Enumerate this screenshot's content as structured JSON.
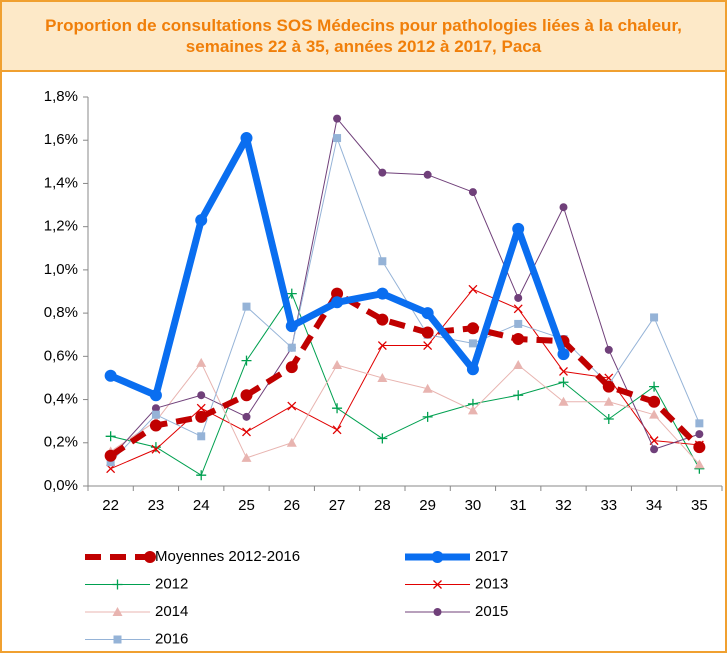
{
  "chart_data": {
    "type": "line",
    "title": "Proportion de consultations SOS Médecins pour pathologies liées à la chaleur, semaines 22 à 35, années 2012 à 2017, Paca",
    "categories": [
      "22",
      "23",
      "24",
      "25",
      "26",
      "27",
      "28",
      "29",
      "30",
      "31",
      "32",
      "33",
      "34",
      "35"
    ],
    "ylim": [
      0,
      1.8
    ],
    "yticks": [
      {
        "value": 0,
        "label": "0,0%"
      },
      {
        "value": 0.2,
        "label": "0,2%"
      },
      {
        "value": 0.4,
        "label": "0,4%"
      },
      {
        "value": 0.6,
        "label": "0,6%"
      },
      {
        "value": 0.8,
        "label": "0,8%"
      },
      {
        "value": 1.0,
        "label": "1,0%"
      },
      {
        "value": 1.2,
        "label": "1,2%"
      },
      {
        "value": 1.4,
        "label": "1,4%"
      },
      {
        "value": 1.6,
        "label": "1,6%"
      },
      {
        "value": 1.8,
        "label": "1,8%"
      }
    ],
    "series": [
      {
        "name": "Moyennes 2012-2016",
        "color": "#c00000",
        "marker": "circle",
        "dashed": true,
        "line_width": 6,
        "values": [
          0.14,
          0.28,
          0.32,
          0.42,
          0.55,
          0.89,
          0.77,
          0.71,
          0.73,
          0.68,
          0.67,
          0.46,
          0.39,
          0.18
        ]
      },
      {
        "name": "2017",
        "color": "#0a6ef0",
        "marker": "circle",
        "dashed": false,
        "line_width": 7,
        "values": [
          0.51,
          0.42,
          1.23,
          1.61,
          0.74,
          0.85,
          0.89,
          0.8,
          0.54,
          1.19,
          0.61,
          null,
          null,
          null
        ]
      },
      {
        "name": "2012",
        "color": "#00a050",
        "marker": "plus",
        "dashed": false,
        "line_width": 1,
        "values": [
          0.23,
          0.18,
          0.05,
          0.58,
          0.89,
          0.36,
          0.22,
          0.32,
          0.38,
          0.42,
          0.48,
          0.31,
          0.46,
          0.08
        ]
      },
      {
        "name": "2013",
        "color": "#e00000",
        "marker": "x",
        "dashed": false,
        "line_width": 1,
        "values": [
          0.08,
          0.17,
          0.36,
          0.25,
          0.37,
          0.26,
          0.65,
          0.65,
          0.91,
          0.82,
          0.53,
          0.5,
          0.21,
          0.19
        ]
      },
      {
        "name": "2014",
        "color": "#e8b4b0",
        "marker": "triangle",
        "dashed": false,
        "line_width": 1,
        "values": [
          0.16,
          0.3,
          0.57,
          0.13,
          0.2,
          0.56,
          0.5,
          0.45,
          0.35,
          0.56,
          0.39,
          0.39,
          0.33,
          0.1
        ]
      },
      {
        "name": "2015",
        "color": "#70407a",
        "marker": "circle",
        "dashed": false,
        "line_width": 1,
        "values": [
          0.13,
          0.36,
          0.42,
          0.32,
          0.64,
          1.7,
          1.45,
          1.44,
          1.36,
          0.87,
          1.29,
          0.63,
          0.17,
          0.24
        ]
      },
      {
        "name": "2016",
        "color": "#95b3d7",
        "marker": "square",
        "dashed": false,
        "line_width": 1,
        "values": [
          0.11,
          0.33,
          0.23,
          0.83,
          0.64,
          1.61,
          1.04,
          0.7,
          0.66,
          0.75,
          0.68,
          0.47,
          0.78,
          0.29
        ]
      }
    ]
  }
}
